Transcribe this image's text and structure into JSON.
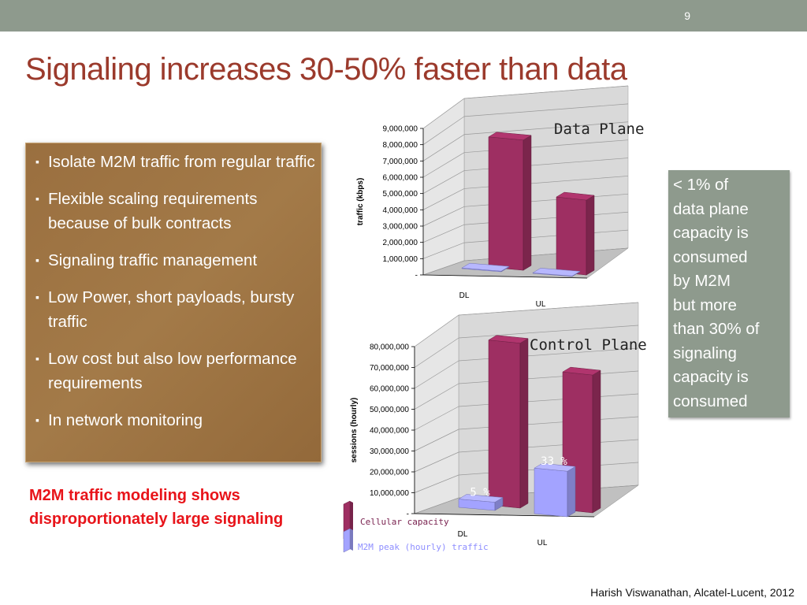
{
  "slide": {
    "number": "9",
    "title": "Signaling increases 30-50% faster than data"
  },
  "bullets": [
    "Isolate M2M traffic from regular traffic",
    "Flexible scaling requirements because of bulk contracts",
    "Signaling traffic management",
    "Low Power, short payloads, bursty traffic",
    "Low cost but also low performance requirements",
    "In network monitoring"
  ],
  "bullet_marker": "▪",
  "red_note": "M2M traffic modeling shows disproportionately large signaling",
  "callout": [
    "< 1% of",
    "data plane",
    "capacity is",
    "consumed",
    "by M2M",
    "but more",
    "than 30% of",
    "signaling",
    "capacity is",
    "consumed"
  ],
  "footer": "Harish Viswanathan, Alcatel-Lucent, 2012",
  "colors": {
    "title": "#9b3a2c",
    "topbar": "#8e9a8d",
    "cellular": "#9e2f62",
    "m2m": "#a3a3ff",
    "note": "#e8141a"
  },
  "chart_data": [
    {
      "type": "bar",
      "title": "Data Plane",
      "ylabel": "traffic (kbps)",
      "categories": [
        "DL",
        "UL"
      ],
      "series": [
        {
          "name": "Cellular capacity",
          "values": [
            8000000,
            4600000
          ]
        },
        {
          "name": "M2M peak (hourly) traffic",
          "values": [
            40000,
            30000
          ]
        }
      ],
      "ylim": [
        0,
        9000000
      ],
      "yticks": [
        "-",
        "1,000,000",
        "2,000,000",
        "3,000,000",
        "4,000,000",
        "5,000,000",
        "6,000,000",
        "7,000,000",
        "8,000,000",
        "9,000,000"
      ],
      "data_labels": [],
      "grid": true,
      "three_d": true
    },
    {
      "type": "bar",
      "title": "Control Plane",
      "ylabel": "sessions (hourly)",
      "categories": [
        "DL",
        "UL"
      ],
      "series": [
        {
          "name": "Cellular capacity",
          "values": [
            79000000,
            66000000
          ]
        },
        {
          "name": "M2M peak (hourly) traffic",
          "values": [
            3950000,
            21800000
          ]
        }
      ],
      "ylim": [
        0,
        80000000
      ],
      "yticks": [
        "-",
        "10,000,000",
        "20,000,000",
        "30,000,000",
        "40,000,000",
        "50,000,000",
        "60,000,000",
        "70,000,000",
        "80,000,000"
      ],
      "data_labels": [
        "5 %",
        "33 %"
      ],
      "legend": [
        "Cellular capacity",
        "M2M peak (hourly) traffic"
      ],
      "legend_position": "bottom-left",
      "grid": true,
      "three_d": true
    }
  ]
}
